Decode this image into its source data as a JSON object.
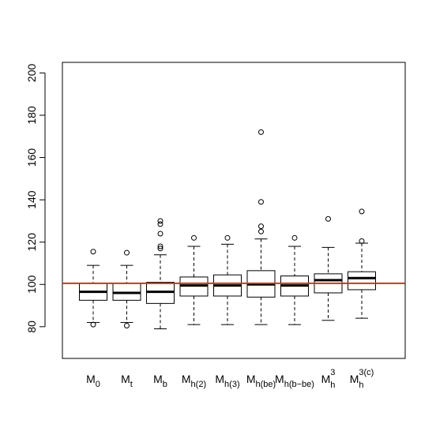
{
  "chart_data": {
    "type": "boxplot",
    "title": "",
    "xlabel": "",
    "ylabel": "",
    "ylim": [
      65,
      205
    ],
    "yticks": [
      80,
      100,
      120,
      140,
      160,
      180,
      200
    ],
    "grid": false,
    "reference_line": {
      "y": 100.5,
      "color": "#c0392b"
    },
    "categories": [
      {
        "main": "M",
        "sub": "0",
        "sup": ""
      },
      {
        "main": "M",
        "sub": "t",
        "sup": ""
      },
      {
        "main": "M",
        "sub": "b",
        "sup": ""
      },
      {
        "main": "M",
        "sub": "h(2)",
        "sup": ""
      },
      {
        "main": "M",
        "sub": "h(3)",
        "sup": ""
      },
      {
        "main": "M",
        "sub": "h(be)",
        "sup": ""
      },
      {
        "main": "M",
        "sub": "h(b−be)",
        "sup": ""
      },
      {
        "main": "M",
        "sub": "h",
        "sup": "3"
      },
      {
        "main": "M",
        "sub": "h",
        "sup": "3(c)"
      }
    ],
    "boxes": [
      {
        "whisker_low": 82,
        "q1": 92.5,
        "median": 96.5,
        "q3": 100.5,
        "whisker_high": 109,
        "outliers": [
          115.5,
          81
        ]
      },
      {
        "whisker_low": 82,
        "q1": 92.5,
        "median": 96,
        "q3": 100.5,
        "whisker_high": 109,
        "outliers": [
          115,
          80.5
        ]
      },
      {
        "whisker_low": 79,
        "q1": 91,
        "median": 96.5,
        "q3": 101,
        "whisker_high": 114,
        "outliers": [
          130,
          128.5,
          124,
          118,
          117
        ]
      },
      {
        "whisker_low": 81,
        "q1": 94.5,
        "median": 99.5,
        "q3": 103.5,
        "whisker_high": 118,
        "outliers": [
          122
        ]
      },
      {
        "whisker_low": 81,
        "q1": 94.5,
        "median": 99.5,
        "q3": 104.5,
        "whisker_high": 119,
        "outliers": [
          122
        ]
      },
      {
        "whisker_low": 81,
        "q1": 94,
        "median": 100,
        "q3": 106.5,
        "whisker_high": 121.5,
        "outliers": [
          172,
          139,
          127.5,
          125
        ]
      },
      {
        "whisker_low": 81,
        "q1": 94.5,
        "median": 99.5,
        "q3": 104,
        "whisker_high": 118,
        "outliers": [
          122
        ]
      },
      {
        "whisker_low": 83,
        "q1": 96,
        "median": 102,
        "q3": 105,
        "whisker_high": 117.5,
        "outliers": [
          131
        ]
      },
      {
        "whisker_low": 84,
        "q1": 97.5,
        "median": 103,
        "q3": 106,
        "whisker_high": 119.5,
        "outliers": [
          134.5,
          120.5
        ]
      }
    ]
  }
}
